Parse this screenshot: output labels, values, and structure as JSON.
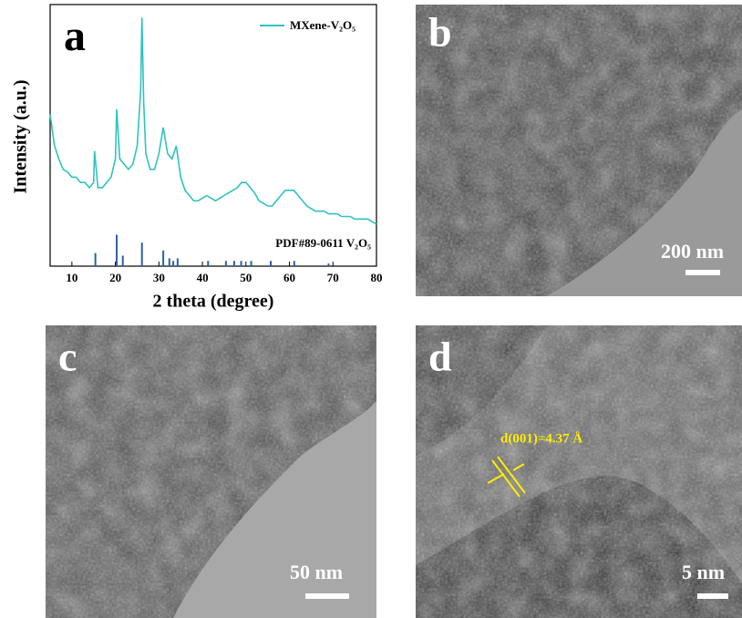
{
  "chart_data": {
    "type": "line",
    "panel_label": "a",
    "xlabel": "2 theta (degree)",
    "ylabel": "Intensity (a.u.)",
    "xlim": [
      5,
      80
    ],
    "xticks": [
      10,
      20,
      30,
      40,
      50,
      60,
      70,
      80
    ],
    "ylim": [
      0,
      100
    ],
    "series": [
      {
        "name": "MXene-V₂O₅",
        "style": "line",
        "color": "#2ec4c0",
        "x": [
          5,
          6,
          7,
          8,
          9,
          10,
          11,
          12,
          13,
          14,
          15,
          15.2,
          16,
          17,
          18,
          19,
          20,
          20.3,
          21,
          22,
          23,
          24,
          25,
          25.8,
          26.1,
          26.5,
          27,
          28,
          29,
          30,
          31,
          32,
          33,
          34,
          35,
          36,
          37,
          38,
          39,
          40,
          41,
          42,
          43,
          44,
          45,
          46,
          47,
          48,
          49,
          50,
          51,
          52,
          53,
          54,
          55,
          56,
          57,
          58,
          59,
          60,
          61,
          62,
          63,
          64,
          65,
          66,
          67,
          68,
          69,
          70,
          71,
          72,
          73,
          74,
          75,
          76,
          77,
          78,
          79,
          80
        ],
        "values": [
          58,
          46,
          41,
          37,
          36,
          34,
          34,
          32,
          32,
          30,
          32,
          44,
          30,
          30,
          32,
          34,
          41,
          60,
          41,
          39,
          37,
          39,
          46,
          67,
          95,
          63,
          43,
          37,
          37,
          43,
          53,
          43,
          41,
          46,
          34,
          29,
          27,
          25,
          25,
          26,
          27,
          26,
          25,
          26,
          27,
          28,
          29,
          30,
          32,
          32,
          30,
          28,
          25,
          24,
          23,
          23,
          25,
          27,
          29,
          29,
          29,
          27,
          25,
          23,
          22,
          21,
          21,
          21,
          20,
          20,
          20,
          19,
          19,
          19,
          18,
          18,
          18,
          18,
          17,
          16
        ]
      },
      {
        "name": "PDF#89-0611 V₂O₅",
        "style": "stick",
        "color": "#2a5fb0",
        "x": [
          15.4,
          20.3,
          21.7,
          26.1,
          31.0,
          32.4,
          33.3,
          34.3,
          41.3,
          45.4,
          47.3,
          48.9,
          51.2,
          55.7,
          61.1,
          69
        ],
        "values": [
          5,
          12,
          4,
          9,
          6,
          3,
          2,
          3,
          2,
          2,
          2,
          2,
          2,
          2,
          2,
          1
        ]
      }
    ]
  },
  "panels": [
    {
      "label": "b",
      "scale_bar": "200 nm"
    },
    {
      "label": "c",
      "scale_bar": "50 nm"
    },
    {
      "label": "d",
      "scale_bar": "5 nm",
      "annotation": "d(001)=4.37 Å"
    }
  ]
}
